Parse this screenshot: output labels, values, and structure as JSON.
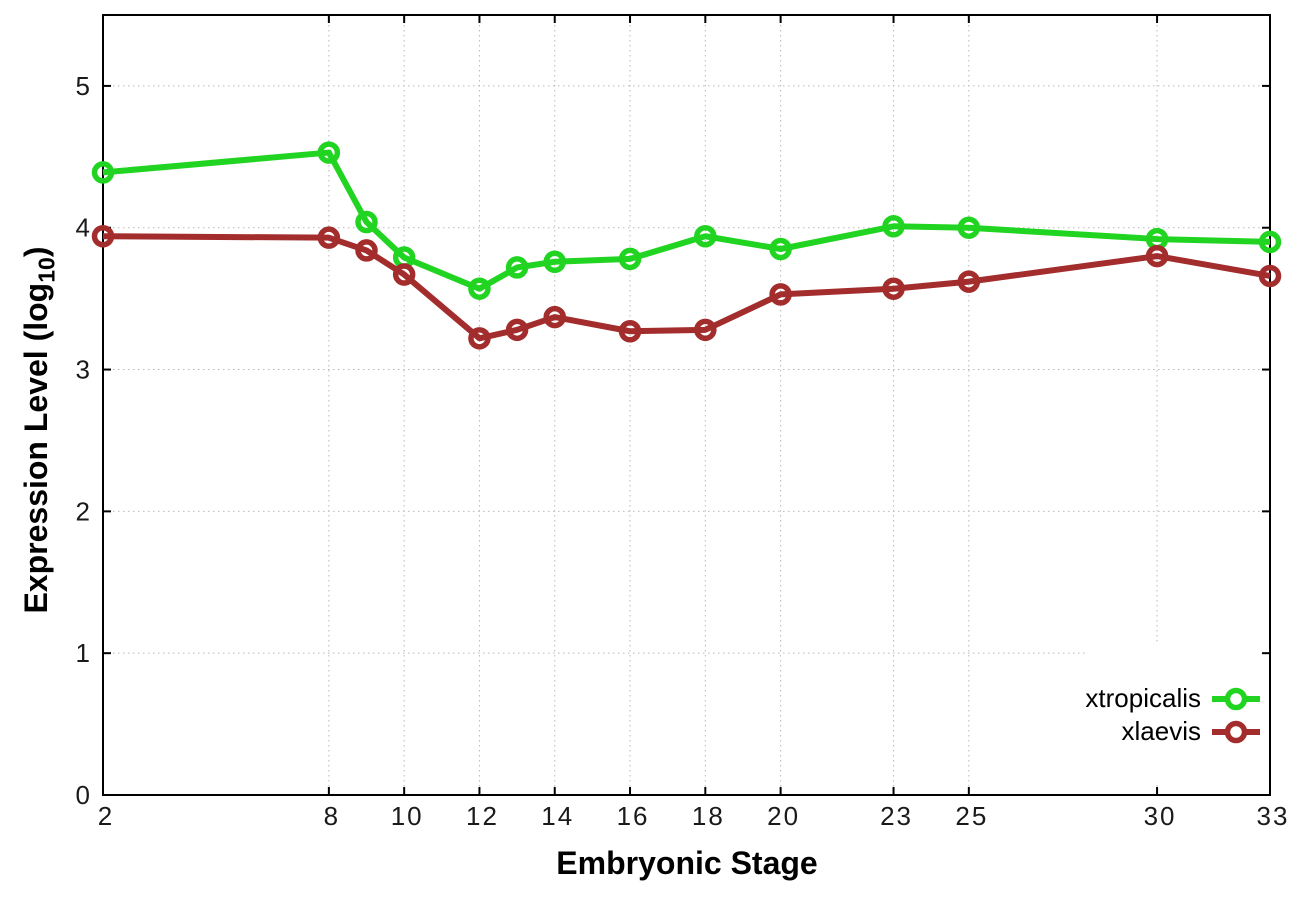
{
  "figure": {
    "xlabel": "Embryonic Stage",
    "ylabel_parts": {
      "prefix": "Expression Level (log",
      "sub": "10",
      "suffix": ")"
    }
  },
  "chart_data": {
    "type": "line",
    "title": "",
    "xlabel": "Embryonic Stage",
    "ylabel": "Expression Level (log10)",
    "x": [
      2,
      8,
      9,
      10,
      12,
      13,
      14,
      16,
      18,
      20,
      23,
      25,
      30,
      33
    ],
    "series": [
      {
        "name": "xtropicalis",
        "color": "#22d422",
        "values": [
          4.39,
          4.53,
          4.04,
          3.79,
          3.57,
          3.72,
          3.76,
          3.78,
          3.94,
          3.85,
          4.01,
          4.0,
          3.92,
          3.9
        ]
      },
      {
        "name": "xlaevis",
        "color": "#a32c2c",
        "values": [
          3.94,
          3.93,
          3.84,
          3.67,
          3.22,
          3.28,
          3.37,
          3.27,
          3.28,
          3.53,
          3.57,
          3.62,
          3.8,
          3.66
        ]
      }
    ],
    "x_ticks": [
      2,
      8,
      10,
      12,
      14,
      16,
      18,
      20,
      23,
      25,
      30,
      33
    ],
    "y_ticks": [
      0,
      1,
      2,
      3,
      4,
      5
    ],
    "xlim": [
      2,
      33
    ],
    "ylim": [
      0,
      5.5
    ],
    "grid": true,
    "marker": "open-circle",
    "legend_position": "bottom-right",
    "axis_color": "#000000",
    "grid_color": "#b9b9b9",
    "background": "#ffffff"
  }
}
